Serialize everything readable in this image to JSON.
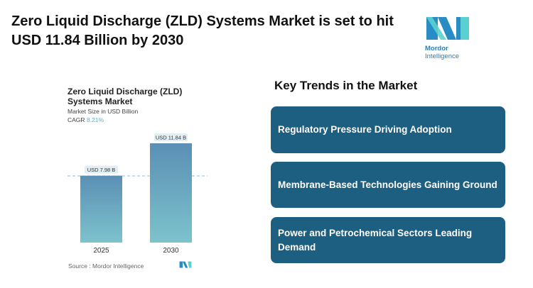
{
  "title": "Zero Liquid Discharge (ZLD) Systems Market is set to hit USD 11.84 Billion by 2030",
  "logo": {
    "name": "Mordor Intelligence",
    "part1": "Mordor",
    "part2": "Intelligence"
  },
  "chart": {
    "title": "Zero Liquid Discharge (ZLD) Systems Market",
    "subtitle": "Market Size in USD Billion",
    "cagr_label": "CAGR",
    "cagr_value": "8.21%",
    "source": "Source :  Mordor Intelligence"
  },
  "chart_data": {
    "type": "bar",
    "title": "Zero Liquid Discharge (ZLD) Systems Market",
    "ylabel": "Market Size in USD Billion",
    "categories": [
      "2025",
      "2030"
    ],
    "values": [
      7.98,
      11.84
    ],
    "data_labels": [
      "USD 7.98 B",
      "USD 11.84 B"
    ],
    "ylim": [
      0,
      11.84
    ],
    "grid": false,
    "colors": {
      "top": "#5b8fb5",
      "bottom": "#7cc3cc"
    }
  },
  "trends": {
    "heading": "Key Trends in the Market",
    "items": [
      "Regulatory Pressure Driving Adoption",
      "Membrane-Based Technologies Gaining Ground",
      "Power and Petrochemical Sectors Leading Demand"
    ],
    "color": "#1d5f80"
  }
}
